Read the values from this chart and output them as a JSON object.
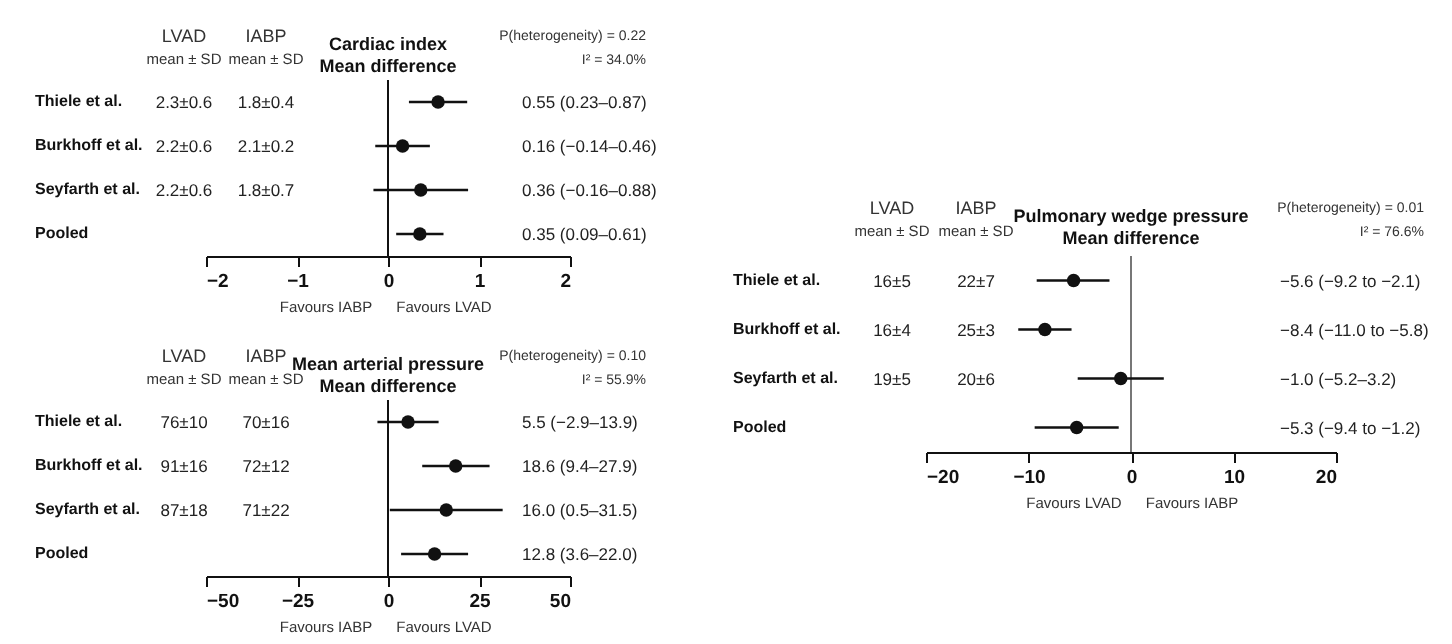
{
  "chart_data": [
    {
      "type": "scatter",
      "orientation": "horizontal",
      "title": "Cardiac index",
      "subtitle": "Mean difference",
      "marker": "circle",
      "categories": [
        "Thiele et al.",
        "Burkhoff et al.",
        "Seyfarth et al.",
        "Pooled"
      ],
      "values": [
        0.55,
        0.16,
        0.36,
        0.35
      ],
      "errors": [
        [
          0.23,
          0.87
        ],
        [
          -0.14,
          0.46
        ],
        [
          -0.16,
          0.88
        ],
        [
          0.09,
          0.61
        ]
      ],
      "color": "#111111",
      "xlim": [
        -2,
        2
      ],
      "xticks": [
        -2,
        -1,
        0,
        1,
        2
      ],
      "ref_lines": [
        {
          "axis": "x",
          "value": 0,
          "color": "#111111"
        }
      ],
      "annotations": [
        "LVAD",
        "mean ± SD",
        "IABP",
        "mean ± SD",
        "P(heterogeneity) = 0.22",
        "I² = 34.0%",
        "Favours IABP",
        "Favours LVAD",
        "2.3±0.6",
        "1.8±0.4",
        "2.2±0.6",
        "2.1±0.2",
        "2.2±0.6",
        "1.8±0.7",
        "0.55 (0.23–0.87)",
        "0.16 (−0.14–0.46)",
        "0.36 (−0.16–0.88)",
        "0.35 (0.09–0.61)"
      ]
    },
    {
      "type": "scatter",
      "orientation": "horizontal",
      "title": "Mean arterial pressure",
      "subtitle": "Mean difference",
      "marker": "circle",
      "categories": [
        "Thiele et al.",
        "Burkhoff et al.",
        "Seyfarth et al.",
        "Pooled"
      ],
      "values": [
        5.5,
        18.6,
        16.0,
        12.8
      ],
      "errors": [
        [
          -2.9,
          13.9
        ],
        [
          9.4,
          27.9
        ],
        [
          0.5,
          31.5
        ],
        [
          3.6,
          22.0
        ]
      ],
      "color": "#111111",
      "xlim": [
        -50,
        50
      ],
      "xticks": [
        -50,
        -25,
        0,
        25,
        50
      ],
      "ref_lines": [
        {
          "axis": "x",
          "value": 0,
          "color": "#111111"
        }
      ],
      "annotations": [
        "LVAD",
        "mean ± SD",
        "IABP",
        "mean ± SD",
        "P(heterogeneity) = 0.10",
        "I² = 55.9%",
        "Favours IABP",
        "Favours LVAD",
        "76±10",
        "70±16",
        "91±16",
        "72±12",
        "87±18",
        "71±22",
        "5.5 (−2.9–13.9)",
        "18.6 (9.4–27.9)",
        "16.0 (0.5–31.5)",
        "12.8 (3.6–22.0)"
      ]
    },
    {
      "type": "scatter",
      "orientation": "horizontal",
      "title": "Pulmonary wedge pressure",
      "subtitle": "Mean difference",
      "marker": "circle",
      "categories": [
        "Thiele et al.",
        "Burkhoff et al.",
        "Seyfarth et al.",
        "Pooled"
      ],
      "values": [
        -5.6,
        -8.4,
        -1.0,
        -5.3
      ],
      "errors": [
        [
          -9.2,
          -2.1
        ],
        [
          -11.0,
          -5.8
        ],
        [
          -5.2,
          3.2
        ],
        [
          -9.4,
          -1.2
        ]
      ],
      "color": "#111111",
      "xlim": [
        -20,
        20
      ],
      "xticks": [
        -20,
        -10,
        0,
        10,
        20
      ],
      "ref_lines": [
        {
          "axis": "x",
          "value": 0,
          "color": "#777777"
        }
      ],
      "annotations": [
        "LVAD",
        "mean ± SD",
        "IABP",
        "mean ± SD",
        "P(heterogeneity) = 0.01",
        "I² = 76.6%",
        "Favours LVAD",
        "Favours IABP",
        "16±5",
        "22±7",
        "16±4",
        "25±3",
        "19±5",
        "20±6",
        "−5.6 (−9.2 to −2.1)",
        "−8.4 (−11.0 to −5.8)",
        "−1.0 (−5.2–3.2)",
        "−5.3 (−9.4 to −1.2)"
      ]
    }
  ]
}
